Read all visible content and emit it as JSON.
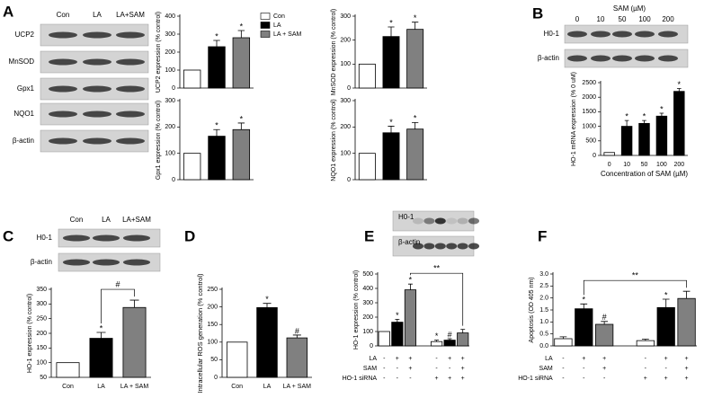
{
  "panel_labels": [
    "A",
    "B",
    "C",
    "D",
    "E",
    "F"
  ],
  "legend": {
    "names": [
      "Con",
      "LA",
      "LA + SAM"
    ],
    "colors": [
      "#ffffff",
      "#000000",
      "#808080"
    ]
  },
  "blots": [
    {
      "lanes": [
        "Con",
        "LA",
        "LA+SAM"
      ],
      "rows": [
        "UCP2",
        "MnSOD",
        "Gpx1",
        "NQO1",
        "β-actin"
      ]
    },
    {
      "header": "SAM (µM)",
      "lanes": [
        "0",
        "10",
        "50",
        "100",
        "200"
      ],
      "rows": [
        "H0-1",
        "β-actin"
      ]
    },
    {
      "lanes": [
        "Con",
        "LA",
        "LA+SAM"
      ],
      "rows": [
        "H0-1",
        "β-actin"
      ]
    },
    {
      "rows": [
        "H0-1",
        "β-actin"
      ]
    }
  ],
  "chart_data": [
    {
      "type": "bar",
      "ylabel": "UCP2 expression (% control)",
      "values": [
        100,
        230,
        280
      ],
      "errors": [
        null,
        35,
        40
      ],
      "colors": [
        "#ffffff",
        "#000000",
        "#808080"
      ],
      "ylim": [
        0,
        400
      ],
      "yticks": [
        0,
        100,
        200,
        300,
        400
      ],
      "marks": [
        null,
        "*",
        "*"
      ]
    },
    {
      "type": "bar",
      "ylabel": "MnSOD expression (% control)",
      "values": [
        100,
        215,
        245
      ],
      "errors": [
        null,
        40,
        30
      ],
      "colors": [
        "#ffffff",
        "#000000",
        "#808080"
      ],
      "ylim": [
        0,
        300
      ],
      "yticks": [
        0,
        100,
        200,
        300
      ],
      "marks": [
        null,
        "*",
        "*"
      ]
    },
    {
      "type": "bar",
      "ylabel": "Gpx1 expression (% control)",
      "values": [
        100,
        165,
        190
      ],
      "errors": [
        null,
        25,
        25
      ],
      "colors": [
        "#ffffff",
        "#000000",
        "#808080"
      ],
      "ylim": [
        0,
        300
      ],
      "yticks": [
        0,
        100,
        200,
        300
      ],
      "marks": [
        null,
        "*",
        "*"
      ]
    },
    {
      "type": "bar",
      "ylabel": "NQO1 expression (% control)",
      "values": [
        100,
        178,
        192
      ],
      "errors": [
        null,
        25,
        25
      ],
      "colors": [
        "#ffffff",
        "#000000",
        "#808080"
      ],
      "ylim": [
        0,
        300
      ],
      "yticks": [
        0,
        100,
        200,
        300
      ],
      "marks": [
        null,
        "*",
        "*"
      ]
    },
    {
      "type": "bar",
      "ylabel": "HO-1 mRNA expression (% 0 uM)",
      "xlabel": "Concentration of SAM (µM)",
      "categories": [
        "0",
        "10",
        "50",
        "100",
        "200"
      ],
      "values": [
        100,
        1000,
        1100,
        1350,
        2200
      ],
      "errors": [
        null,
        200,
        100,
        100,
        100
      ],
      "colors": [
        "#ffffff",
        "#000000",
        "#000000",
        "#000000",
        "#000000"
      ],
      "ylim": [
        0,
        2500
      ],
      "yticks": [
        0,
        500,
        1000,
        1500,
        2000,
        2500
      ],
      "marks": [
        null,
        "*",
        "*",
        "*",
        "*"
      ]
    },
    {
      "type": "bar",
      "ylabel": "HO-1 expression (% control)",
      "categories": [
        "Con",
        "LA",
        "LA + SAM"
      ],
      "values": [
        100,
        183,
        288
      ],
      "errors": [
        null,
        20,
        25
      ],
      "colors": [
        "#ffffff",
        "#000000",
        "#808080"
      ],
      "ylim": [
        50,
        350
      ],
      "yticks": [
        50,
        100,
        150,
        200,
        250,
        300,
        350
      ],
      "marks": [
        null,
        "*",
        null
      ],
      "brackets": [
        {
          "text": "#",
          "from": 1,
          "to": 2
        }
      ]
    },
    {
      "type": "bar",
      "ylabel": "Intracellular ROS generation (% control)",
      "categories": [
        "Con",
        "LA",
        "LA + SAM"
      ],
      "values": [
        100,
        198,
        112
      ],
      "errors": [
        null,
        12,
        8
      ],
      "colors": [
        "#ffffff",
        "#000000",
        "#808080"
      ],
      "ylim": [
        0,
        250
      ],
      "yticks": [
        0,
        50,
        100,
        150,
        200,
        250
      ],
      "marks": [
        null,
        "*",
        "#"
      ]
    },
    {
      "type": "bar",
      "ylabel": "HO-1 expression (% control)",
      "values": [
        100,
        165,
        390,
        30,
        40,
        90
      ],
      "errors": [
        null,
        20,
        40,
        10,
        10,
        25
      ],
      "colors": [
        "#ffffff",
        "#000000",
        "#808080",
        "#ffffff",
        "#000000",
        "#808080"
      ],
      "ylim": [
        0,
        500
      ],
      "yticks": [
        0,
        100,
        200,
        300,
        400,
        500
      ],
      "marks": [
        null,
        "*",
        "*",
        "*",
        "#",
        null
      ],
      "brackets": [
        {
          "text": "**",
          "from": 2,
          "to": 5
        }
      ],
      "conditions": [
        {
          "name": "LA",
          "values": [
            "-",
            "+",
            "+",
            "-",
            "+",
            "+"
          ]
        },
        {
          "name": "SAM",
          "values": [
            "-",
            "-",
            "+",
            "-",
            "-",
            "+"
          ]
        },
        {
          "name": "HO-1 siRNA",
          "values": [
            "-",
            "-",
            "-",
            "+",
            "+",
            "+"
          ]
        }
      ]
    },
    {
      "type": "bar",
      "ylabel": "Apoptosis (OD 405 nm)",
      "values": [
        0.3,
        1.55,
        0.9,
        0.22,
        1.6,
        1.98
      ],
      "errors": [
        0.08,
        0.2,
        0.12,
        0.06,
        0.35,
        0.3
      ],
      "colors": [
        "#ffffff",
        "#000000",
        "#808080",
        "#ffffff",
        "#000000",
        "#808080"
      ],
      "ylim": [
        0,
        3
      ],
      "yticks": [
        {
          "value": 0,
          "label": "0.0"
        },
        0.5,
        {
          "value": 1,
          "label": "1.0"
        },
        1.5,
        {
          "value": 2,
          "label": "2.0"
        },
        2.5,
        {
          "value": 3,
          "label": "3.0"
        }
      ],
      "marks": [
        null,
        "*",
        "#",
        null,
        "*",
        null
      ],
      "brackets": [
        {
          "text": "**",
          "from": 1,
          "to": 5
        }
      ],
      "conditions": [
        {
          "name": "LA",
          "values": [
            "-",
            "+",
            "+",
            "-",
            "+",
            "+"
          ]
        },
        {
          "name": "SAM",
          "values": [
            "-",
            "-",
            "+",
            "-",
            "-",
            "+"
          ]
        },
        {
          "name": "HO-1 siRNA",
          "values": [
            "-",
            "-",
            "-",
            "+",
            "+",
            "+"
          ]
        }
      ]
    }
  ]
}
